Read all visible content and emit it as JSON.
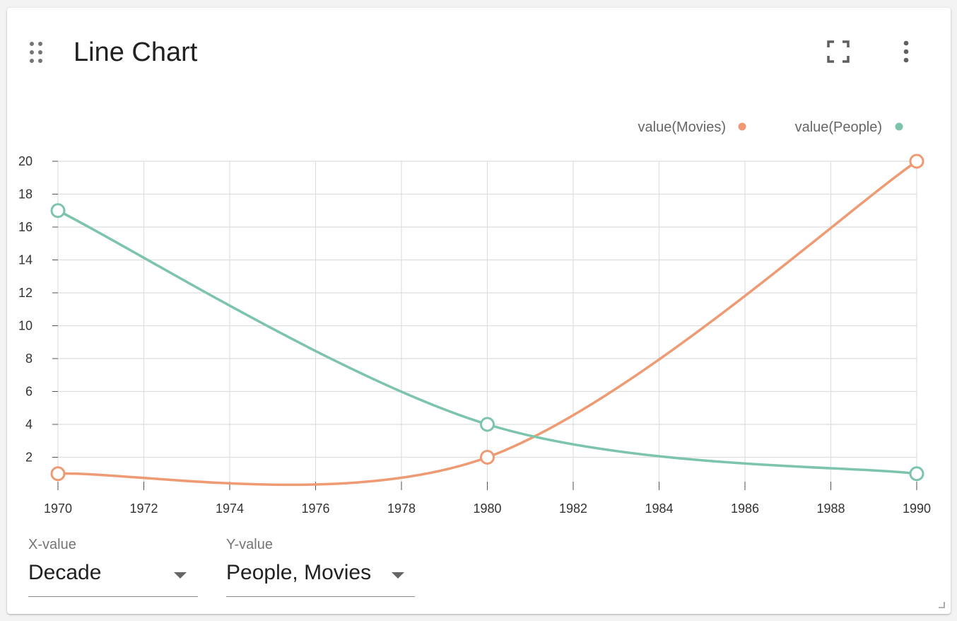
{
  "card": {
    "title": "Line Chart"
  },
  "icons": {
    "drag": "drag-dots-icon",
    "fullscreen": "fullscreen-icon",
    "menu": "more-vert-icon",
    "resize": "resize-grip-icon"
  },
  "controls": {
    "x_value": {
      "label": "X-value",
      "value": "Decade"
    },
    "y_value": {
      "label": "Y-value",
      "value": "People, Movies"
    }
  },
  "chart_data": {
    "type": "line",
    "title": "",
    "xlabel": "",
    "ylabel": "",
    "x": [
      1970,
      1980,
      1990
    ],
    "series": [
      {
        "name": "value(Movies)",
        "values": [
          1,
          2,
          20
        ],
        "color": "#ee9a72"
      },
      {
        "name": "value(People)",
        "values": [
          17,
          4,
          1
        ],
        "color": "#7cc4ab"
      }
    ],
    "xlim": [
      1970,
      1990
    ],
    "ylim": [
      0,
      20
    ],
    "x_ticks": [
      "1970",
      "1972",
      "1974",
      "1976",
      "1978",
      "1980",
      "1982",
      "1984",
      "1986",
      "1988",
      "1990"
    ],
    "y_ticks": [
      "2",
      "4",
      "6",
      "8",
      "10",
      "12",
      "14",
      "16",
      "18",
      "20"
    ],
    "grid": true,
    "legend_position": "top-right",
    "curve": "smooth"
  }
}
